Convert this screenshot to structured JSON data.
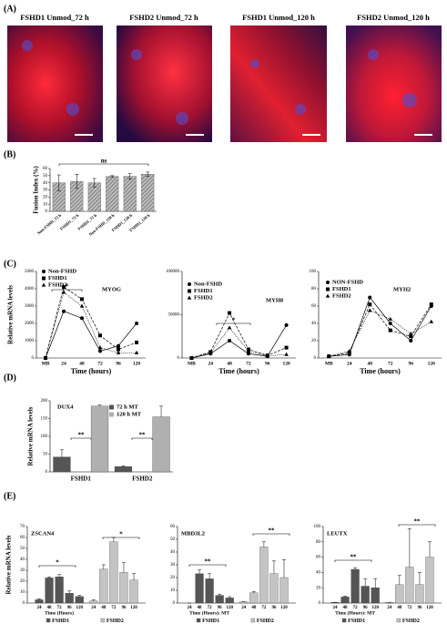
{
  "panels": [
    "(A)",
    "(B)",
    "(C)",
    "(D)",
    "(E)"
  ],
  "images": [
    {
      "title": "FSHD1 Unmod_72 h"
    },
    {
      "title": "FSHD2 Unmod_72 h"
    },
    {
      "title": "FSHD1 Unmod_120 h"
    },
    {
      "title": "FSHD2 Unmod_120 h"
    }
  ],
  "chart_data": [
    {
      "type": "bar",
      "y_label": "Fusion Index (%)",
      "categories": [
        "Non-FSHD_72 h",
        "FSHD1_72 h",
        "FSHD2_72 h",
        "Non-FSHD_120 h",
        "FSHD1_120 h",
        "FSHD2_120 h"
      ],
      "values": [
        40,
        42,
        40,
        49,
        49,
        52
      ],
      "errors": [
        11,
        10,
        6,
        1,
        4,
        3
      ],
      "color": "#8c8c8c",
      "ylim": [
        0,
        60
      ],
      "yticks": [
        0,
        10,
        20,
        30,
        40,
        50,
        60
      ],
      "annotations": [
        "ns"
      ]
    },
    {
      "type": "line",
      "title": "MYOG",
      "y_label": "Relative mRNA levels",
      "x_label": "Time (hours)",
      "categories": [
        "MB",
        "24",
        "48",
        "72",
        "96",
        "120"
      ],
      "series": [
        {
          "name": "Non-FSHD",
          "marker": "circle",
          "line_style": "solid",
          "color": "#000000",
          "values": [
            0,
            2700,
            2300,
            400,
            700,
            2000
          ]
        },
        {
          "name": "FSHD1",
          "marker": "square",
          "line_style": "dashed",
          "color": "#000000",
          "values": [
            0,
            4100,
            3400,
            1300,
            500,
            900
          ]
        },
        {
          "name": "FSHD2",
          "marker": "triangle",
          "line_style": "dotted",
          "color": "#000000",
          "values": [
            0,
            3800,
            3000,
            600,
            300,
            300
          ]
        }
      ],
      "ylim": [
        0,
        5000
      ],
      "yticks": [
        0,
        1000,
        2000,
        3000,
        4000,
        5000
      ],
      "annotations": [
        "*"
      ]
    },
    {
      "type": "line",
      "title": "MYH8",
      "x_label": "Time (hours)",
      "categories": [
        "MB",
        "24",
        "48",
        "72",
        "96",
        "120"
      ],
      "series": [
        {
          "name": "Non-FSHD",
          "marker": "circle",
          "line_style": "solid",
          "color": "#000000",
          "values": [
            0,
            5000,
            20000,
            5000,
            2000,
            38000
          ]
        },
        {
          "name": "FSHD1",
          "marker": "square",
          "line_style": "dashed",
          "color": "#000000",
          "values": [
            0,
            7000,
            52000,
            10000,
            3000,
            12000
          ]
        },
        {
          "name": "FSHD2",
          "marker": "triangle",
          "line_style": "dotted",
          "color": "#000000",
          "values": [
            0,
            6000,
            35000,
            8000,
            2500,
            4000
          ]
        }
      ],
      "ylim": [
        0,
        100000
      ],
      "yticks": [
        0,
        50000,
        100000
      ],
      "annotations": [
        "*"
      ]
    },
    {
      "type": "line",
      "title": "MYH2",
      "x_label": "Time (hours)",
      "categories": [
        "MB",
        "24",
        "48",
        "72",
        "96",
        "120"
      ],
      "series": [
        {
          "name": "NON-FSHD",
          "marker": "circle",
          "line_style": "solid",
          "color": "#000000",
          "values": [
            2,
            4,
            70,
            40,
            20,
            60
          ]
        },
        {
          "name": "FSHD1",
          "marker": "square",
          "line_style": "dashed",
          "color": "#000000",
          "values": [
            2,
            6,
            62,
            32,
            25,
            62
          ]
        },
        {
          "name": "FSHD2",
          "marker": "triangle",
          "line_style": "dotted",
          "color": "#000000",
          "values": [
            2,
            8,
            55,
            45,
            28,
            42
          ]
        }
      ],
      "ylim": [
        0,
        100
      ],
      "yticks": [
        0,
        20,
        40,
        60,
        80,
        100
      ],
      "annotations": []
    },
    {
      "type": "bar",
      "title": "DUX4",
      "y_label": "Relative mRNA levels",
      "categories": [
        "FSHD1",
        "FSHD2"
      ],
      "series": [
        {
          "name": "72 h MT",
          "color": "#555555",
          "values": [
            42,
            15
          ],
          "errors": [
            20,
            2
          ]
        },
        {
          "name": "120 h MT",
          "color": "#b0b0b0",
          "values": [
            185,
            155
          ],
          "errors": [
            3,
            30
          ]
        }
      ],
      "ylim": [
        0,
        200
      ],
      "yticks": [
        0,
        50,
        100,
        150,
        200
      ],
      "annotations": [
        "**",
        "**"
      ]
    },
    {
      "type": "bar",
      "title": "ZSCAN4",
      "y_label": "Relative mRNA levels",
      "x_label": "Time (Hours)",
      "categories": [
        "24",
        "48",
        "72",
        "96",
        "120"
      ],
      "series": [
        {
          "name": "FSHD1",
          "color": "#555555",
          "values": [
            3,
            23,
            24,
            9,
            6
          ],
          "errors": [
            1,
            1,
            2,
            2,
            1
          ]
        },
        {
          "name": "FSHD2",
          "color": "#c4c4c4",
          "values": [
            2,
            31,
            56,
            28,
            21
          ],
          "errors": [
            1,
            4,
            4,
            9,
            6
          ]
        }
      ],
      "ylim": [
        0,
        70
      ],
      "yticks": [
        0,
        10,
        20,
        30,
        40,
        50,
        60,
        70
      ],
      "annotations": [
        "*",
        "*"
      ]
    },
    {
      "type": "bar",
      "title": "MBD3L2",
      "x_label": "Time (Hours): MT",
      "categories": [
        "24",
        "48",
        "72",
        "96",
        "120"
      ],
      "series": [
        {
          "name": "FSHD1",
          "color": "#555555",
          "values": [
            0,
            23,
            19,
            6,
            4
          ],
          "errors": [
            0,
            3,
            4,
            1,
            1
          ]
        },
        {
          "name": "FSHD2",
          "color": "#c4c4c4",
          "values": [
            1,
            8,
            44,
            23,
            20
          ],
          "errors": [
            0,
            1,
            4,
            10,
            14
          ]
        }
      ],
      "ylim": [
        0,
        60
      ],
      "yticks": [
        0,
        10,
        20,
        30,
        40,
        50,
        60
      ],
      "annotations": [
        "**",
        "**"
      ]
    },
    {
      "type": "bar",
      "title": "LEUTX",
      "x_label": "Time (Hours): MT",
      "categories": [
        "24",
        "48",
        "72",
        "96",
        "120"
      ],
      "series": [
        {
          "name": "FSHD1",
          "color": "#555555",
          "values": [
            1,
            8,
            44,
            22,
            20
          ],
          "errors": [
            0,
            1,
            2,
            10,
            12
          ]
        },
        {
          "name": "FSHD2",
          "color": "#c4c4c4",
          "values": [
            1,
            24,
            47,
            24,
            60
          ],
          "errors": [
            0,
            12,
            50,
            16,
            20
          ]
        }
      ],
      "ylim": [
        0,
        100
      ],
      "yticks": [
        0,
        20,
        40,
        60,
        80,
        100
      ],
      "annotations": [
        "**",
        "**"
      ]
    }
  ]
}
